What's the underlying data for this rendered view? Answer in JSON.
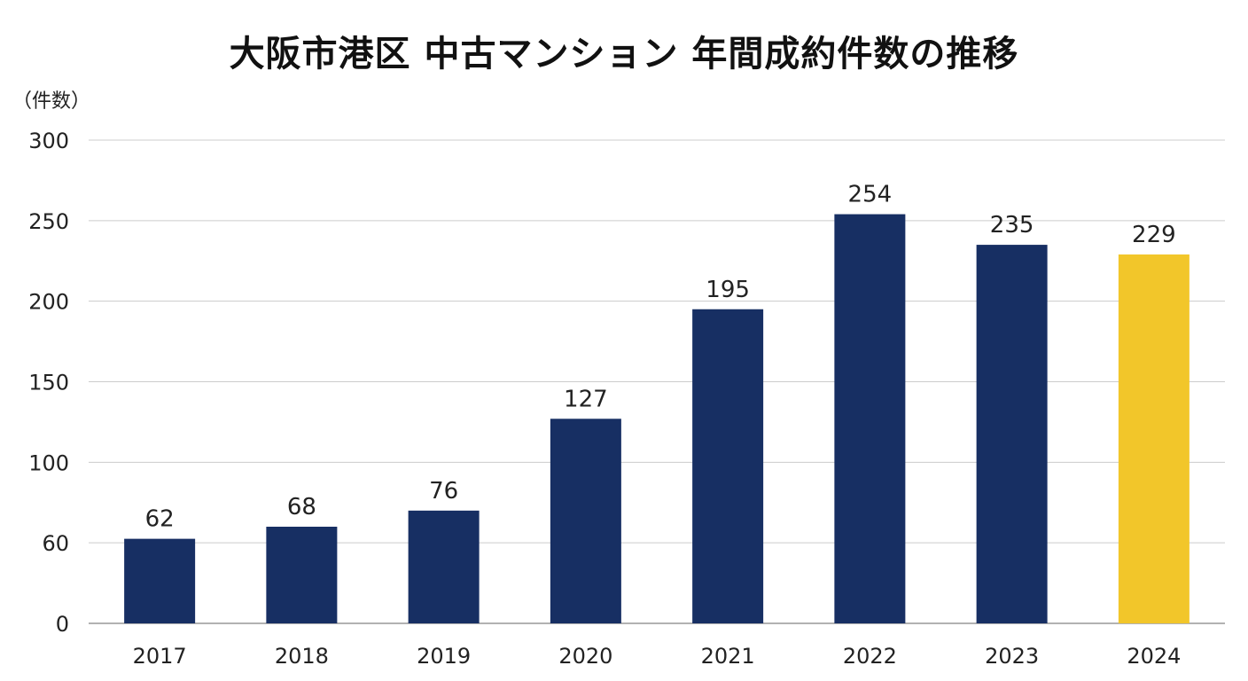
{
  "chart_data": {
    "type": "bar",
    "title": "大阪市港区 中古マンション 年間成約件数の推移",
    "ylabel": "（件数）",
    "xlabel": "",
    "categories": [
      "2017",
      "2018",
      "2019",
      "2020",
      "2021",
      "2022",
      "2023",
      "2024"
    ],
    "values": [
      62,
      68,
      76,
      127,
      195,
      254,
      235,
      229
    ],
    "y_ticks": [
      0,
      60,
      100,
      150,
      200,
      250,
      300
    ],
    "ylim": [
      0,
      300
    ],
    "grid": true,
    "legend": "none",
    "colors": {
      "bar": "#172f63",
      "highlight": "#f2c62a",
      "grid": "#cccccc",
      "axis": "#999999"
    },
    "highlight_category": "2024"
  }
}
